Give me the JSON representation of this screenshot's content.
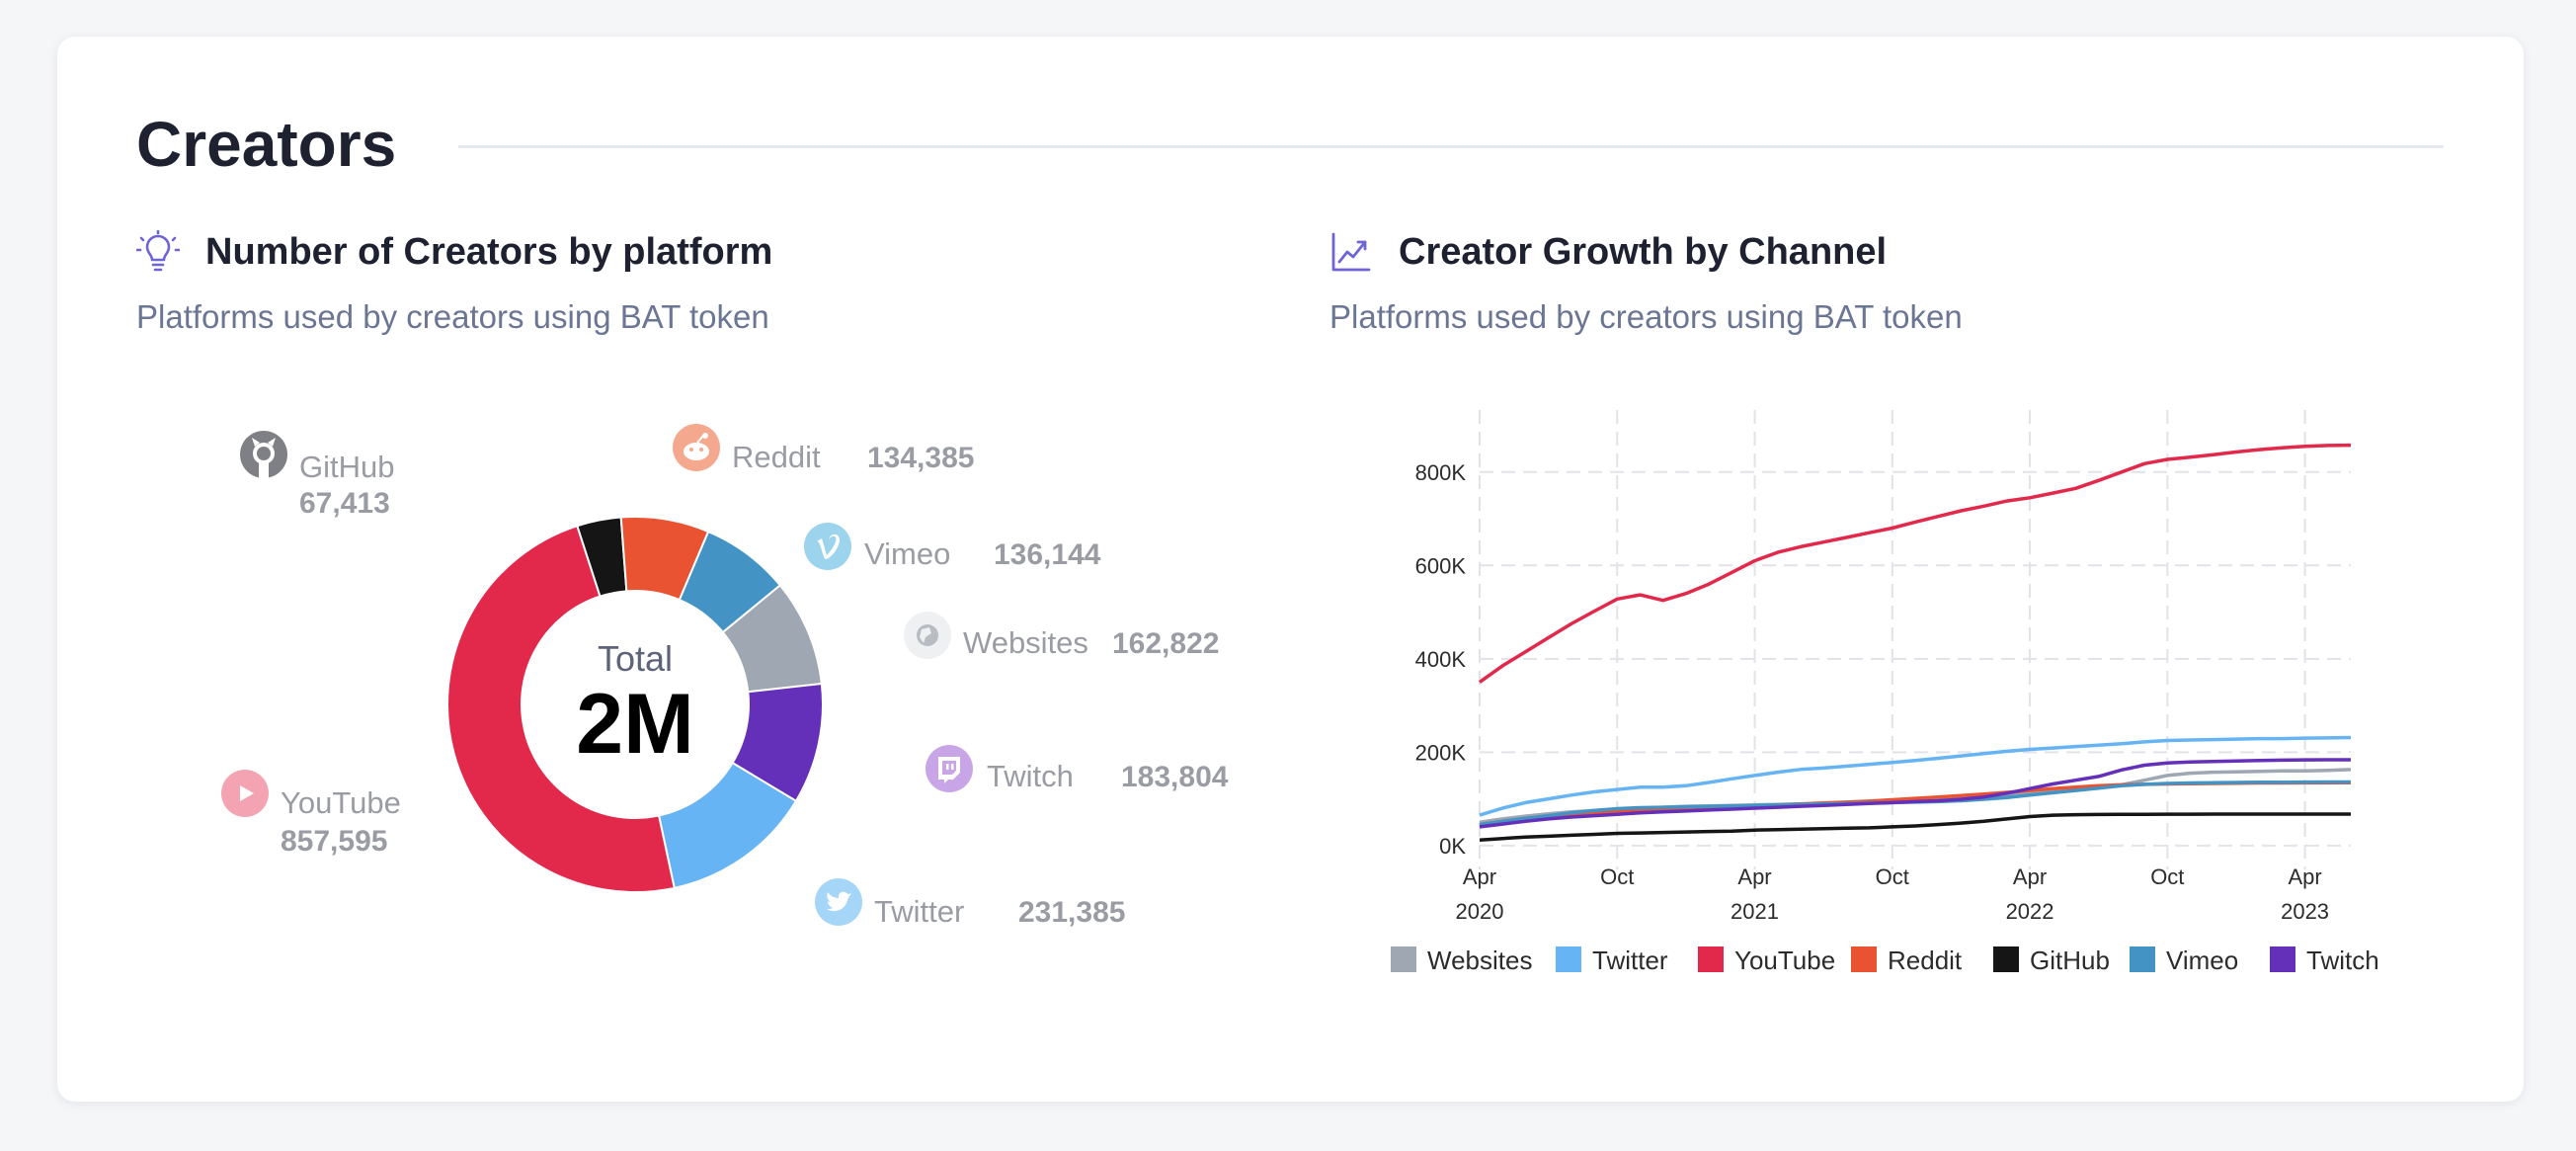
{
  "section": {
    "title": "Creators"
  },
  "left_panel": {
    "title": "Number of Creators by platform",
    "subtitle": "Platforms used by creators using BAT token",
    "icon": "lightbulb-icon"
  },
  "right_panel": {
    "title": "Creator Growth by Channel",
    "subtitle": "Platforms used by creators using BAT token",
    "icon": "trending-up-icon"
  },
  "chart_data": [
    {
      "type": "pie",
      "variant": "donut",
      "center_label": "Total",
      "center_value": "2M",
      "slices": [
        {
          "label": "GitHub",
          "value": 67413,
          "value_label": "67,413",
          "color": "#151515",
          "icon": "github-icon"
        },
        {
          "label": "Reddit",
          "value": 134385,
          "value_label": "134,385",
          "color": "#ea5332",
          "icon": "reddit-icon"
        },
        {
          "label": "Vimeo",
          "value": 136144,
          "value_label": "136,144",
          "color": "#4393c4",
          "icon": "vimeo-icon"
        },
        {
          "label": "Websites",
          "value": 162822,
          "value_label": "162,822",
          "color": "#9ea7b2",
          "icon": "globe-icon"
        },
        {
          "label": "Twitch",
          "value": 183804,
          "value_label": "183,804",
          "color": "#6530b9",
          "icon": "twitch-icon"
        },
        {
          "label": "Twitter",
          "value": 231385,
          "value_label": "231,385",
          "color": "#66b4f3",
          "icon": "twitter-icon"
        },
        {
          "label": "YouTube",
          "value": 857595,
          "value_label": "857,595",
          "color": "#e2294b",
          "icon": "youtube-icon"
        }
      ]
    },
    {
      "type": "line",
      "x": [
        "2020-04",
        "2020-05",
        "2020-06",
        "2020-07",
        "2020-08",
        "2020-09",
        "2020-10",
        "2020-11",
        "2020-12",
        "2021-01",
        "2021-02",
        "2021-03",
        "2021-04",
        "2021-05",
        "2021-06",
        "2021-07",
        "2021-08",
        "2021-09",
        "2021-10",
        "2021-11",
        "2021-12",
        "2022-01",
        "2022-02",
        "2022-03",
        "2022-04",
        "2022-05",
        "2022-06",
        "2022-07",
        "2022-08",
        "2022-09",
        "2022-10",
        "2022-11",
        "2022-12",
        "2023-01",
        "2023-02",
        "2023-03",
        "2023-04",
        "2023-05",
        "2023-06"
      ],
      "x_ticks": [
        {
          "x": "2020-04",
          "label": "Apr",
          "year": "2020"
        },
        {
          "x": "2020-10",
          "label": "Oct",
          "year": ""
        },
        {
          "x": "2021-04",
          "label": "Apr",
          "year": "2021"
        },
        {
          "x": "2021-10",
          "label": "Oct",
          "year": ""
        },
        {
          "x": "2022-04",
          "label": "Apr",
          "year": "2022"
        },
        {
          "x": "2022-10",
          "label": "Oct",
          "year": ""
        },
        {
          "x": "2023-04",
          "label": "Apr",
          "year": "2023"
        }
      ],
      "y_ticks": [
        {
          "value": 0,
          "label": "0K"
        },
        {
          "value": 200000,
          "label": "200K"
        },
        {
          "value": 400000,
          "label": "400K"
        },
        {
          "value": 600000,
          "label": "600K"
        },
        {
          "value": 800000,
          "label": "800K"
        }
      ],
      "ylim": [
        -30000,
        880000
      ],
      "grid": true,
      "legend_position": "bottom",
      "series": [
        {
          "name": "Websites",
          "color": "#9ea7b2",
          "values": [
            50000,
            57000,
            63000,
            68000,
            72000,
            75000,
            78000,
            80000,
            82000,
            84000,
            85000,
            86000,
            87000,
            88000,
            89000,
            90000,
            92000,
            94000,
            96000,
            98000,
            100000,
            102000,
            105000,
            108000,
            112000,
            116000,
            120000,
            124000,
            130000,
            140000,
            150000,
            155000,
            157000,
            158000,
            159000,
            160000,
            160000,
            161000,
            162822
          ]
        },
        {
          "name": "Twitter",
          "color": "#66b4f3",
          "values": [
            65000,
            80000,
            92000,
            100000,
            108000,
            115000,
            120000,
            125000,
            125000,
            128000,
            135000,
            143000,
            150000,
            157000,
            163000,
            166000,
            170000,
            174000,
            178000,
            182000,
            187000,
            192000,
            197000,
            202000,
            206000,
            209000,
            212000,
            215000,
            218000,
            222000,
            225000,
            226000,
            227000,
            228000,
            229000,
            229000,
            230000,
            230500,
            231385
          ]
        },
        {
          "name": "YouTube",
          "color": "#e2294b",
          "values": [
            350000,
            385000,
            415000,
            445000,
            475000,
            502000,
            528000,
            537000,
            525000,
            540000,
            560000,
            585000,
            610000,
            628000,
            640000,
            650000,
            660000,
            670000,
            680000,
            693000,
            705000,
            717000,
            727000,
            738000,
            745000,
            755000,
            765000,
            782000,
            800000,
            818000,
            827000,
            832000,
            837000,
            843000,
            848000,
            852000,
            855000,
            857000,
            857595
          ]
        },
        {
          "name": "Reddit",
          "color": "#ea5332",
          "values": [
            45000,
            52000,
            58000,
            63000,
            67000,
            70000,
            73000,
            75000,
            77000,
            79000,
            81000,
            83000,
            85000,
            87000,
            89000,
            91000,
            93000,
            95000,
            98000,
            101000,
            104000,
            107000,
            110000,
            114000,
            118000,
            122000,
            125000,
            128000,
            130000,
            131000,
            132000,
            132500,
            133000,
            133500,
            134000,
            134000,
            134200,
            134300,
            134385
          ]
        },
        {
          "name": "GitHub",
          "color": "#151515",
          "values": [
            12000,
            15000,
            18000,
            20000,
            22000,
            24000,
            26000,
            27000,
            28000,
            29000,
            30000,
            31000,
            33000,
            34000,
            35000,
            36000,
            37000,
            38000,
            40000,
            42000,
            45000,
            48000,
            52000,
            57000,
            62000,
            65000,
            66000,
            66500,
            67000,
            67000,
            67100,
            67200,
            67300,
            67300,
            67350,
            67400,
            67400,
            67400,
            67413
          ]
        },
        {
          "name": "Vimeo",
          "color": "#4393c4",
          "values": [
            45000,
            52000,
            58000,
            64000,
            70000,
            75000,
            79000,
            81000,
            82000,
            83000,
            84000,
            85000,
            86000,
            87000,
            88000,
            89000,
            90000,
            91000,
            92000,
            93000,
            94000,
            96000,
            99000,
            103000,
            108000,
            113000,
            118000,
            123000,
            128000,
            131000,
            133000,
            134000,
            134500,
            135000,
            135500,
            135800,
            136000,
            136100,
            136144
          ]
        },
        {
          "name": "Twitch",
          "color": "#6530b9",
          "values": [
            40000,
            46000,
            52000,
            57000,
            61000,
            64000,
            67000,
            70000,
            72000,
            74000,
            76000,
            78000,
            80000,
            82000,
            84000,
            86000,
            88000,
            90000,
            92000,
            94000,
            96000,
            99000,
            104000,
            112000,
            122000,
            132000,
            140000,
            148000,
            162000,
            172000,
            177000,
            179000,
            180000,
            181000,
            182000,
            183000,
            183500,
            183700,
            183804
          ]
        }
      ]
    }
  ]
}
